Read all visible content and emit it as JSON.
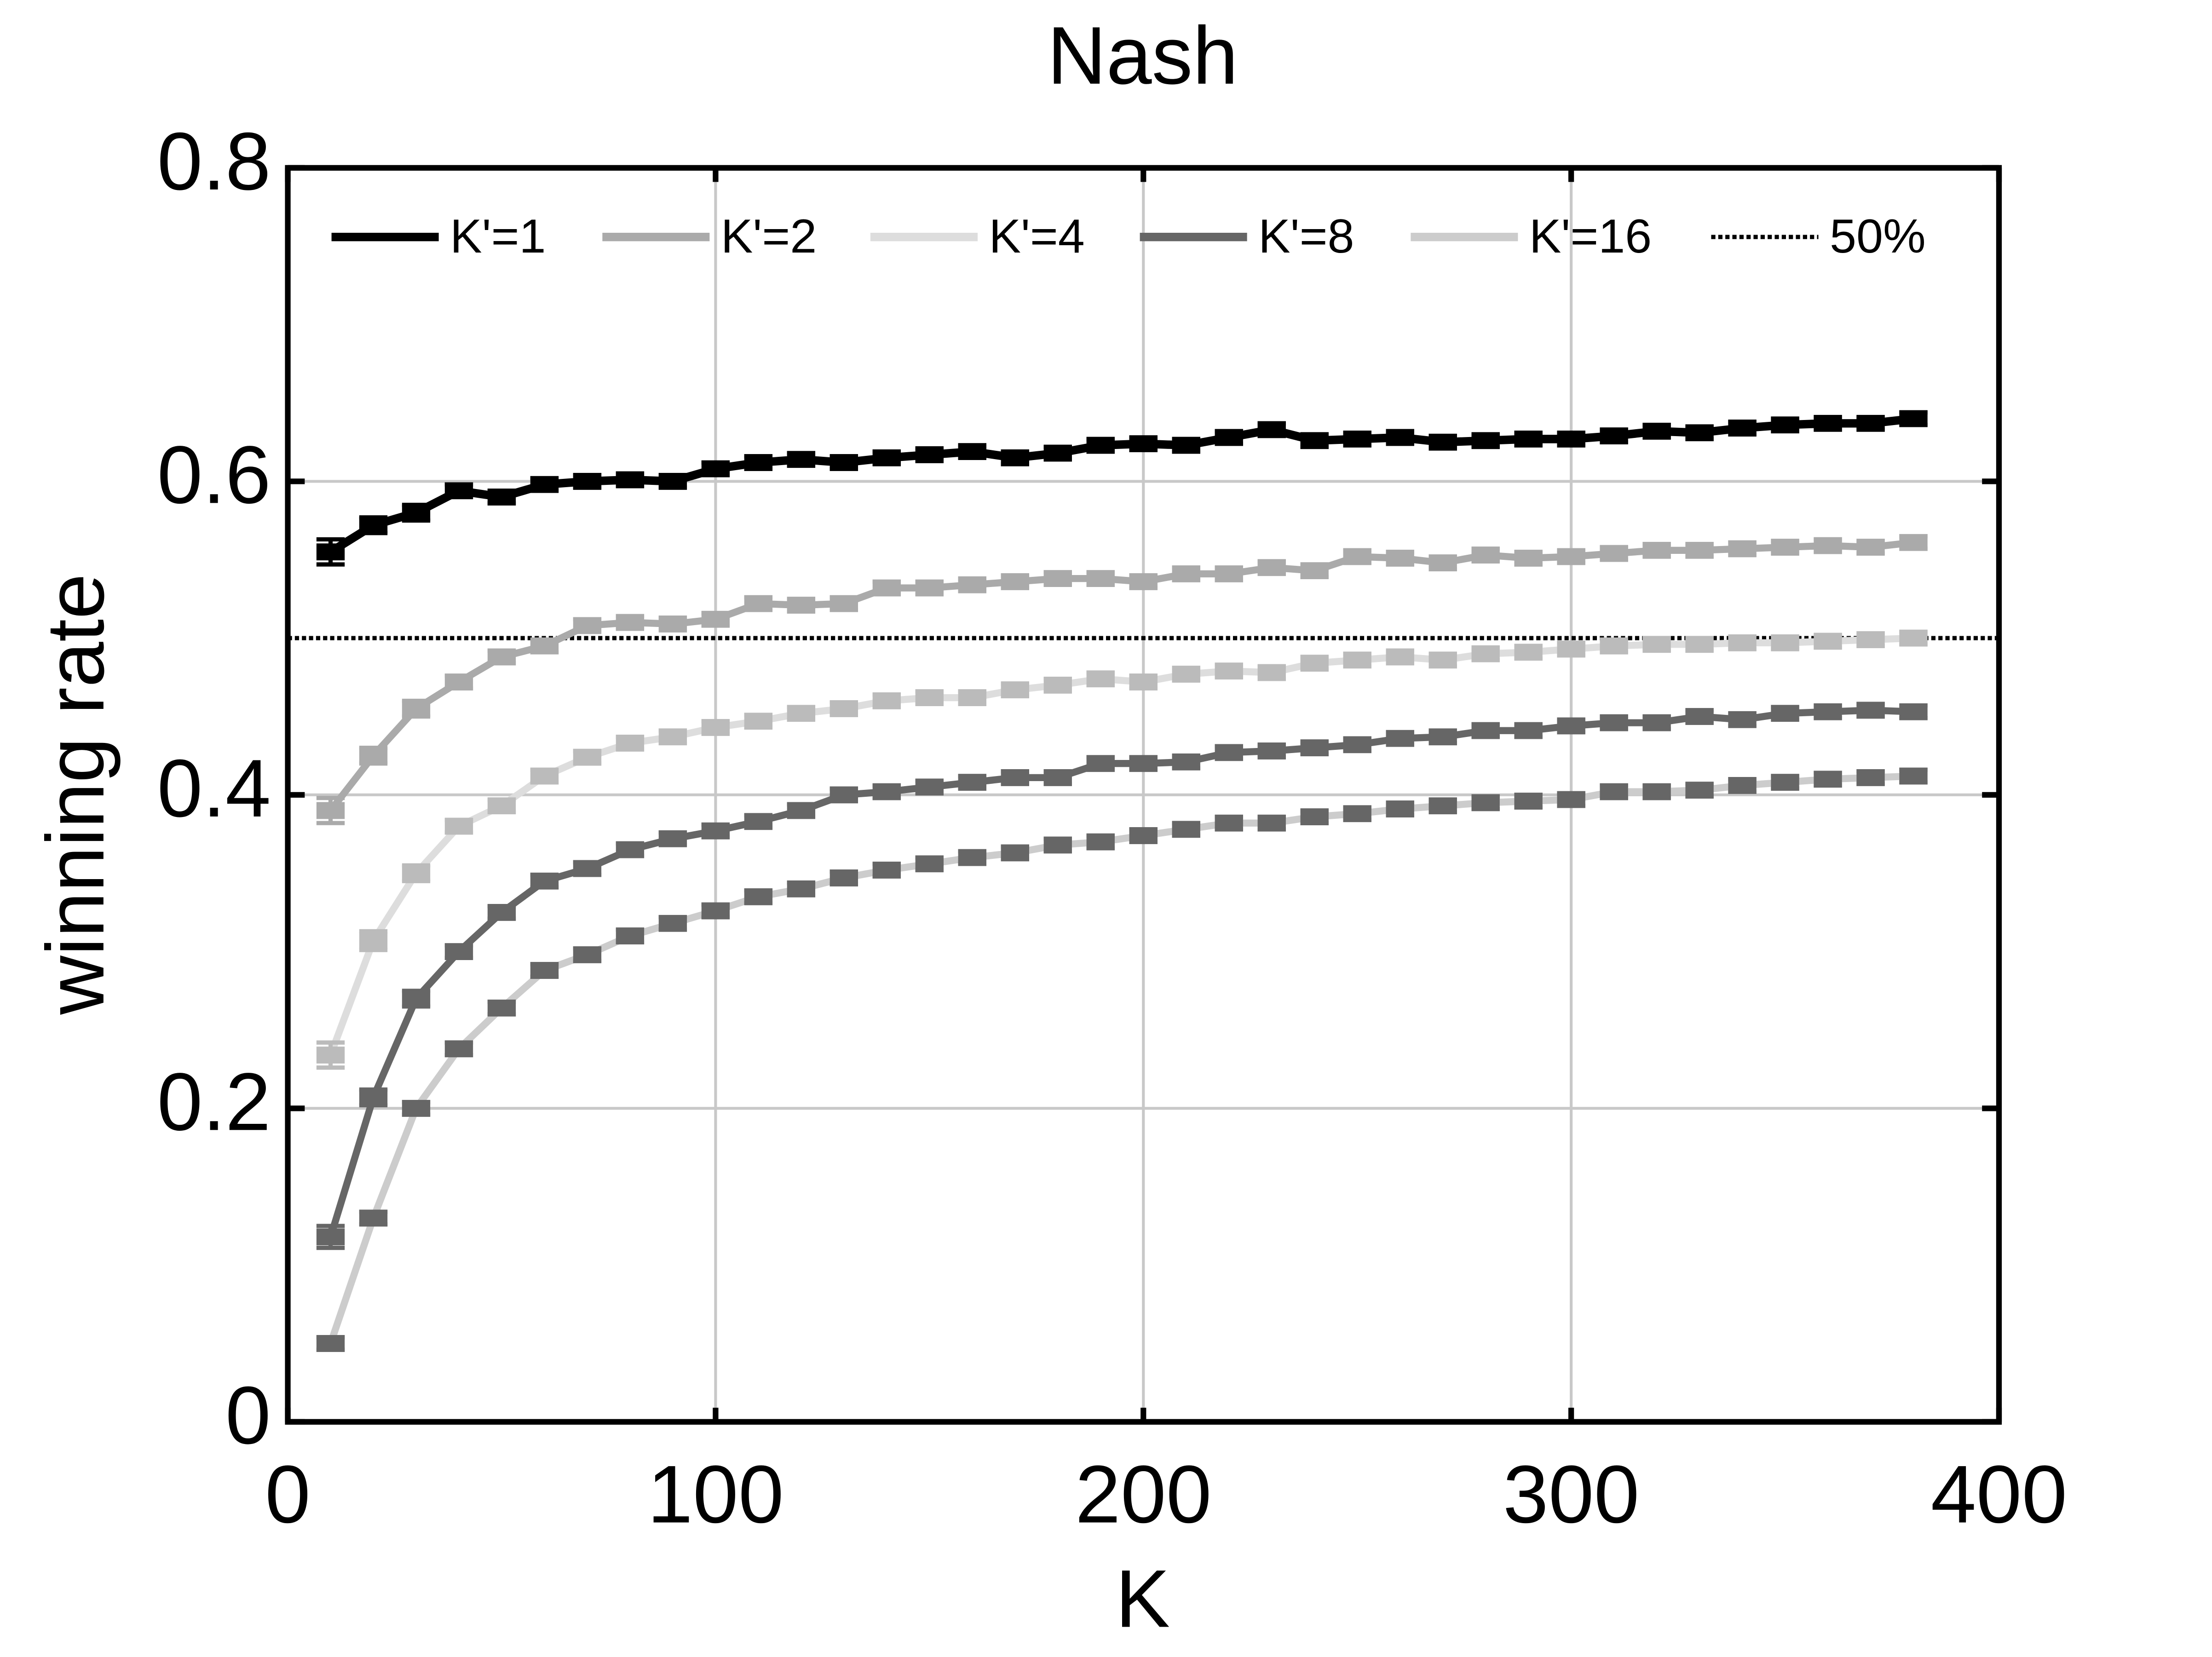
{
  "chart_data": {
    "type": "line",
    "title": "Nash",
    "xlabel": "K",
    "ylabel": "winning rate",
    "xlim": [
      0,
      400
    ],
    "xticks": [
      0,
      100,
      200,
      300,
      400
    ],
    "ylim": [
      0,
      0.8
    ],
    "yticks": [
      0,
      0.2,
      0.4,
      0.6,
      0.8
    ],
    "grid": true,
    "legend": "top",
    "x": [
      10,
      20,
      30,
      40,
      50,
      60,
      70,
      80,
      90,
      100,
      110,
      120,
      130,
      140,
      150,
      160,
      170,
      180,
      190,
      200,
      210,
      220,
      230,
      240,
      250,
      260,
      270,
      280,
      290,
      300,
      310,
      320,
      330,
      340,
      350,
      360,
      370,
      380
    ],
    "series": [
      {
        "name": "K'=1",
        "color": "#000000",
        "marker_color": "#000000",
        "values": [
          0.555,
          0.572,
          0.58,
          0.594,
          0.59,
          0.598,
          0.6,
          0.601,
          0.6,
          0.608,
          0.612,
          0.614,
          0.612,
          0.615,
          0.617,
          0.619,
          0.615,
          0.618,
          0.623,
          0.624,
          0.623,
          0.628,
          0.633,
          0.626,
          0.627,
          0.628,
          0.625,
          0.626,
          0.627,
          0.627,
          0.629,
          0.632,
          0.631,
          0.634,
          0.636,
          0.637,
          0.637,
          0.64
        ],
        "errors": [
          0.008,
          0.005,
          0.005,
          0.004,
          0.004,
          0.004,
          0.004,
          0.004,
          0.004,
          0.004,
          0.004,
          0.004,
          0.004,
          0.004,
          0.004,
          0.004,
          0.004,
          0.004,
          0.004,
          0.004,
          0.004,
          0.004,
          0.004,
          0.004,
          0.004,
          0.004,
          0.004,
          0.004,
          0.004,
          0.004,
          0.004,
          0.004,
          0.004,
          0.004,
          0.004,
          0.004,
          0.004,
          0.004
        ]
      },
      {
        "name": "K'=2",
        "color": "#aaaaaa",
        "marker_color": "#aaaaaa",
        "values": [
          0.39,
          0.425,
          0.455,
          0.472,
          0.488,
          0.495,
          0.508,
          0.51,
          0.509,
          0.512,
          0.522,
          0.521,
          0.522,
          0.532,
          0.532,
          0.534,
          0.536,
          0.538,
          0.538,
          0.536,
          0.541,
          0.541,
          0.545,
          0.543,
          0.552,
          0.551,
          0.548,
          0.553,
          0.551,
          0.552,
          0.554,
          0.556,
          0.556,
          0.557,
          0.558,
          0.559,
          0.558,
          0.561
        ],
        "errors": [
          0.008,
          0.005,
          0.005,
          0.004,
          0.004,
          0.004,
          0.004,
          0.004,
          0.004,
          0.004,
          0.004,
          0.004,
          0.004,
          0.004,
          0.004,
          0.004,
          0.004,
          0.004,
          0.004,
          0.004,
          0.004,
          0.004,
          0.004,
          0.004,
          0.004,
          0.004,
          0.004,
          0.004,
          0.004,
          0.004,
          0.004,
          0.004,
          0.004,
          0.004,
          0.004,
          0.004,
          0.004,
          0.004
        ]
      },
      {
        "name": "K'=4",
        "color": "#dddddd",
        "marker_color": "#bbbbbb",
        "values": [
          0.234,
          0.307,
          0.35,
          0.38,
          0.393,
          0.412,
          0.424,
          0.433,
          0.437,
          0.443,
          0.447,
          0.452,
          0.455,
          0.46,
          0.462,
          0.462,
          0.467,
          0.47,
          0.474,
          0.472,
          0.477,
          0.479,
          0.478,
          0.484,
          0.486,
          0.488,
          0.486,
          0.49,
          0.491,
          0.493,
          0.495,
          0.496,
          0.496,
          0.497,
          0.497,
          0.498,
          0.499,
          0.5
        ],
        "errors": [
          0.008,
          0.006,
          0.005,
          0.004,
          0.004,
          0.004,
          0.004,
          0.004,
          0.004,
          0.004,
          0.004,
          0.004,
          0.004,
          0.004,
          0.004,
          0.004,
          0.004,
          0.004,
          0.004,
          0.004,
          0.004,
          0.004,
          0.004,
          0.004,
          0.004,
          0.004,
          0.004,
          0.004,
          0.004,
          0.004,
          0.004,
          0.004,
          0.004,
          0.004,
          0.004,
          0.004,
          0.004,
          0.004
        ]
      },
      {
        "name": "K'=8",
        "color": "#666666",
        "marker_color": "#666666",
        "values": [
          0.118,
          0.207,
          0.27,
          0.3,
          0.325,
          0.345,
          0.353,
          0.365,
          0.372,
          0.377,
          0.383,
          0.39,
          0.4,
          0.402,
          0.405,
          0.408,
          0.411,
          0.411,
          0.42,
          0.42,
          0.421,
          0.427,
          0.428,
          0.43,
          0.432,
          0.436,
          0.437,
          0.441,
          0.441,
          0.444,
          0.446,
          0.446,
          0.45,
          0.448,
          0.452,
          0.453,
          0.454,
          0.453
        ],
        "errors": [
          0.007,
          0.005,
          0.005,
          0.004,
          0.004,
          0.004,
          0.004,
          0.004,
          0.004,
          0.004,
          0.004,
          0.004,
          0.004,
          0.004,
          0.004,
          0.004,
          0.004,
          0.004,
          0.004,
          0.004,
          0.004,
          0.004,
          0.004,
          0.004,
          0.004,
          0.004,
          0.004,
          0.004,
          0.004,
          0.004,
          0.004,
          0.004,
          0.004,
          0.004,
          0.004,
          0.004,
          0.004,
          0.004
        ]
      },
      {
        "name": "K'=16",
        "color": "#cccccc",
        "marker_color": "#666666",
        "values": [
          0.05,
          0.13,
          0.2,
          0.238,
          0.264,
          0.288,
          0.298,
          0.31,
          0.318,
          0.326,
          0.335,
          0.34,
          0.347,
          0.352,
          0.356,
          0.36,
          0.363,
          0.368,
          0.37,
          0.374,
          0.378,
          0.382,
          0.382,
          0.386,
          0.388,
          0.391,
          0.393,
          0.395,
          0.396,
          0.397,
          0.402,
          0.402,
          0.403,
          0.406,
          0.408,
          0.41,
          0.411,
          0.412
        ],
        "errors": [
          0.004,
          0.004,
          0.004,
          0.004,
          0.004,
          0.004,
          0.004,
          0.004,
          0.004,
          0.004,
          0.004,
          0.004,
          0.004,
          0.004,
          0.004,
          0.004,
          0.004,
          0.004,
          0.004,
          0.004,
          0.004,
          0.004,
          0.004,
          0.004,
          0.004,
          0.004,
          0.004,
          0.004,
          0.004,
          0.004,
          0.004,
          0.004,
          0.004,
          0.004,
          0.004,
          0.004,
          0.004,
          0.004
        ]
      }
    ],
    "reference_line": {
      "name": "50%",
      "value": 0.5,
      "color": "#000000"
    }
  }
}
